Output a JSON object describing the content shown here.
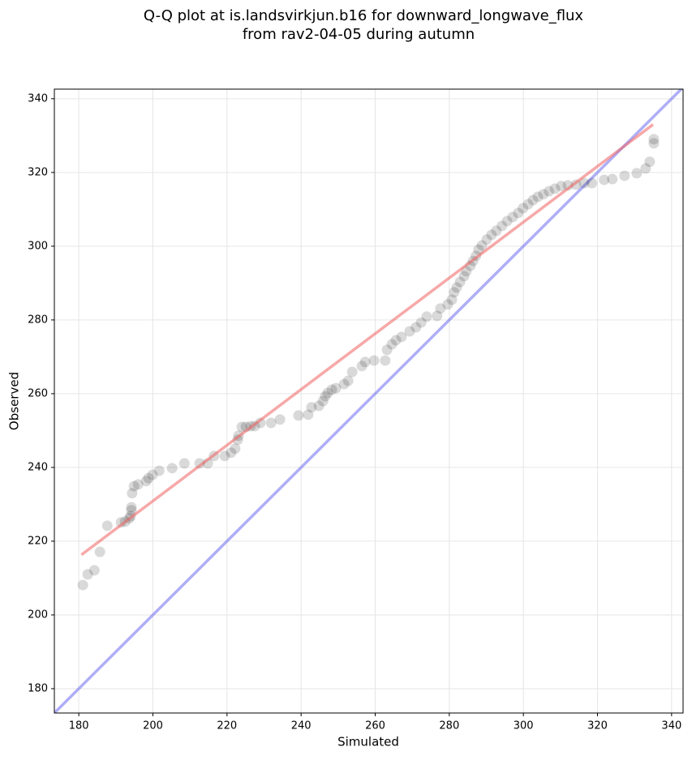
{
  "chart_data": {
    "type": "scatter",
    "title": [
      "Q-Q plot at is.landsvirkjun.b16 for downward_longwave_flux",
      "from rav2-04-05 during autumn"
    ],
    "x_label": "Simulated",
    "y_label": "Observed",
    "xlim": [
      173.4,
      343.1
    ],
    "ylim": [
      173.4,
      342.6
    ],
    "xticks": [
      180,
      200,
      220,
      240,
      260,
      280,
      300,
      320,
      340
    ],
    "yticks": [
      180,
      200,
      220,
      240,
      260,
      280,
      300,
      320,
      340
    ],
    "grid": true,
    "point_color": "#000000",
    "x": [
      181.1,
      182.4,
      184.2,
      185.7,
      187.7,
      191.4,
      192.5,
      193.6,
      194.0,
      194.2,
      194.2,
      194.4,
      194.9,
      196.0,
      198.2,
      198.8,
      199.9,
      201.7,
      205.2,
      208.5,
      212.6,
      214.8,
      216.5,
      219.4,
      221.1,
      222.2,
      222.9,
      223.1,
      224.0,
      225.1,
      226.4,
      227.5,
      229.0,
      231.9,
      234.3,
      239.3,
      241.9,
      242.8,
      244.8,
      245.9,
      246.5,
      247.2,
      248.3,
      249.4,
      251.6,
      252.7,
      253.8,
      256.4,
      257.3,
      259.7,
      262.7,
      263.2,
      264.5,
      265.6,
      267.1,
      269.3,
      271.0,
      272.4,
      273.9,
      276.7,
      277.6,
      279.6,
      280.7,
      281.3,
      282.0,
      282.9,
      284.0,
      284.6,
      285.7,
      286.4,
      287.2,
      287.9,
      288.8,
      290.1,
      291.4,
      292.7,
      294.2,
      295.6,
      297.1,
      298.6,
      299.9,
      301.3,
      302.6,
      303.9,
      305.4,
      306.9,
      308.5,
      310.2,
      312.0,
      314.2,
      316.4,
      318.5,
      321.8,
      324.0,
      327.3,
      330.6,
      333.0,
      334.1,
      335.2,
      335.2
    ],
    "y": [
      208.1,
      211.0,
      212.1,
      217.1,
      224.2,
      225.1,
      225.3,
      226.2,
      226.8,
      228.4,
      229.2,
      233.0,
      234.9,
      235.4,
      236.3,
      237.1,
      238.0,
      239.1,
      239.8,
      241.1,
      241.1,
      241.1,
      243.1,
      243.1,
      244.0,
      245.1,
      247.5,
      248.6,
      251.0,
      251.0,
      251.2,
      251.2,
      252.1,
      252.1,
      253.0,
      254.1,
      254.3,
      256.3,
      256.7,
      258.0,
      259.3,
      260.2,
      261.1,
      261.5,
      262.6,
      263.5,
      265.9,
      267.5,
      268.6,
      269.0,
      269.0,
      271.9,
      273.4,
      274.5,
      275.4,
      276.9,
      278.0,
      279.3,
      280.9,
      281.1,
      283.1,
      284.2,
      285.5,
      287.5,
      288.8,
      290.3,
      291.9,
      293.2,
      294.7,
      296.0,
      297.4,
      299.1,
      300.2,
      301.8,
      303.1,
      304.2,
      305.5,
      306.8,
      307.9,
      309.0,
      310.3,
      311.4,
      312.5,
      313.4,
      314.1,
      314.9,
      315.6,
      316.3,
      316.5,
      316.7,
      317.1,
      317.1,
      318.0,
      318.2,
      319.1,
      319.8,
      321.1,
      322.9,
      327.9,
      329.0
    ],
    "fit_line": {
      "color": "#f06060",
      "x": [
        180.7,
        335.0
      ],
      "y": [
        216.3,
        333.0
      ]
    },
    "reference_line": {
      "color": "#6b6bf0",
      "x": [
        173.4,
        343.1
      ],
      "y": [
        173.4,
        343.1
      ]
    }
  }
}
